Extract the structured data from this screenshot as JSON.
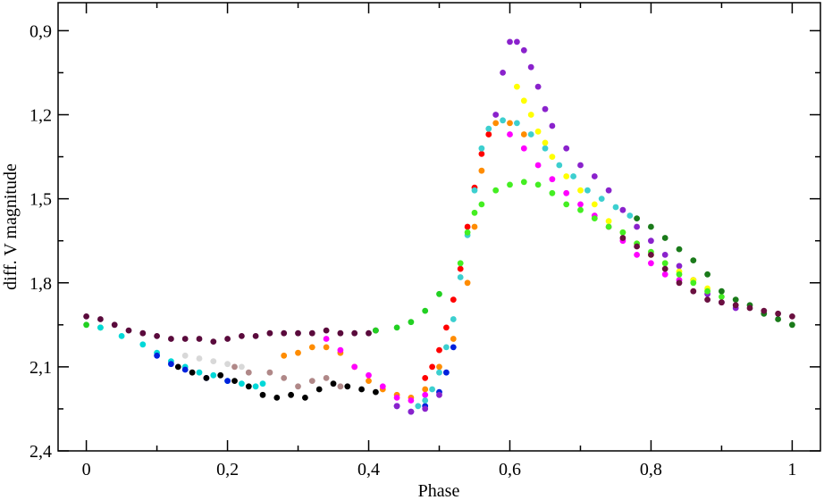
{
  "chart_data": {
    "type": "scatter",
    "xlabel": "Phase",
    "ylabel": "diff. V magnitude",
    "xlim": [
      -0.04,
      1.04
    ],
    "ylim": [
      0.8,
      2.4
    ],
    "y_inverted": true,
    "grid": false,
    "legend": "none",
    "x_ticks": [
      {
        "value": 0,
        "label": "0"
      },
      {
        "value": 0.2,
        "label": "0,2"
      },
      {
        "value": 0.4,
        "label": "0,4"
      },
      {
        "value": 0.6,
        "label": "0,6"
      },
      {
        "value": 0.8,
        "label": "0,8"
      },
      {
        "value": 1,
        "label": "1"
      }
    ],
    "y_ticks": [
      {
        "value": 0.9,
        "label": "0,9"
      },
      {
        "value": 1.2,
        "label": "1,2"
      },
      {
        "value": 1.5,
        "label": "1,5"
      },
      {
        "value": 1.8,
        "label": "1,8"
      },
      {
        "value": 2.1,
        "label": "2,1"
      },
      {
        "value": 2.4,
        "label": "2,4"
      }
    ],
    "series": [
      {
        "color": "#5a0a3c",
        "points": [
          [
            0.0,
            1.92
          ],
          [
            0.02,
            1.93
          ],
          [
            0.04,
            1.95
          ],
          [
            0.06,
            1.97
          ],
          [
            0.08,
            1.98
          ],
          [
            0.1,
            1.99
          ],
          [
            0.12,
            2.0
          ],
          [
            0.14,
            2.0
          ],
          [
            0.16,
            2.0
          ],
          [
            0.18,
            2.01
          ],
          [
            0.2,
            2.0
          ],
          [
            0.22,
            1.99
          ],
          [
            0.24,
            1.99
          ],
          [
            0.26,
            1.98
          ],
          [
            0.28,
            1.98
          ],
          [
            0.3,
            1.98
          ],
          [
            0.32,
            1.98
          ],
          [
            0.34,
            1.97
          ],
          [
            0.36,
            1.98
          ],
          [
            0.38,
            1.98
          ],
          [
            0.4,
            1.98
          ],
          [
            0.41,
            1.97
          ]
        ]
      },
      {
        "color": "#22d022",
        "points": [
          [
            0.0,
            1.95
          ],
          [
            0.02,
            1.96
          ],
          [
            0.41,
            1.97
          ],
          [
            0.44,
            1.96
          ],
          [
            0.46,
            1.94
          ],
          [
            0.48,
            1.9
          ],
          [
            0.5,
            1.84
          ]
        ]
      },
      {
        "color": "#00d8d8",
        "points": [
          [
            0.02,
            1.96
          ],
          [
            0.05,
            1.99
          ],
          [
            0.08,
            2.02
          ],
          [
            0.1,
            2.05
          ],
          [
            0.12,
            2.08
          ],
          [
            0.14,
            2.1
          ],
          [
            0.16,
            2.12
          ],
          [
            0.18,
            2.13
          ],
          [
            0.2,
            2.15
          ],
          [
            0.22,
            2.16
          ],
          [
            0.24,
            2.17
          ],
          [
            0.25,
            2.16
          ]
        ]
      },
      {
        "color": "#0022dd",
        "points": [
          [
            0.1,
            2.06
          ],
          [
            0.12,
            2.09
          ],
          [
            0.14,
            2.11
          ],
          [
            0.17,
            2.14
          ],
          [
            0.2,
            2.15
          ],
          [
            0.44,
            2.24
          ],
          [
            0.46,
            2.26
          ],
          [
            0.48,
            2.24
          ],
          [
            0.5,
            2.19
          ],
          [
            0.51,
            2.12
          ],
          [
            0.52,
            2.03
          ]
        ]
      },
      {
        "color": "#000000",
        "points": [
          [
            0.13,
            2.1
          ],
          [
            0.15,
            2.12
          ],
          [
            0.17,
            2.14
          ],
          [
            0.19,
            2.13
          ],
          [
            0.21,
            2.15
          ],
          [
            0.23,
            2.17
          ],
          [
            0.25,
            2.2
          ],
          [
            0.27,
            2.21
          ],
          [
            0.29,
            2.2
          ],
          [
            0.31,
            2.21
          ],
          [
            0.33,
            2.18
          ],
          [
            0.35,
            2.16
          ],
          [
            0.37,
            2.17
          ],
          [
            0.39,
            2.18
          ],
          [
            0.41,
            2.19
          ]
        ]
      },
      {
        "color": "#d8d8d8",
        "points": [
          [
            0.14,
            2.06
          ],
          [
            0.16,
            2.07
          ],
          [
            0.18,
            2.08
          ],
          [
            0.2,
            2.09
          ],
          [
            0.22,
            2.1
          ]
        ]
      },
      {
        "color": "#b08888",
        "points": [
          [
            0.21,
            2.1
          ],
          [
            0.23,
            2.12
          ],
          [
            0.26,
            2.12
          ],
          [
            0.28,
            2.14
          ],
          [
            0.3,
            2.17
          ],
          [
            0.32,
            2.15
          ],
          [
            0.34,
            2.14
          ],
          [
            0.36,
            2.17
          ]
        ]
      },
      {
        "color": "#ff8c00",
        "points": [
          [
            0.28,
            2.06
          ],
          [
            0.3,
            2.05
          ],
          [
            0.32,
            2.03
          ],
          [
            0.34,
            2.03
          ],
          [
            0.36,
            2.05
          ],
          [
            0.38,
            2.1
          ],
          [
            0.4,
            2.15
          ],
          [
            0.42,
            2.18
          ],
          [
            0.44,
            2.2
          ],
          [
            0.46,
            2.21
          ],
          [
            0.48,
            2.18
          ],
          [
            0.5,
            2.1
          ],
          [
            0.52,
            2.0
          ],
          [
            0.54,
            1.8
          ],
          [
            0.55,
            1.6
          ],
          [
            0.56,
            1.4
          ],
          [
            0.57,
            1.27
          ],
          [
            0.58,
            1.23
          ],
          [
            0.6,
            1.23
          ],
          [
            0.62,
            1.27
          ]
        ]
      },
      {
        "color": "#ff00ff",
        "points": [
          [
            0.34,
            2.0
          ],
          [
            0.36,
            2.04
          ],
          [
            0.38,
            2.1
          ],
          [
            0.4,
            2.13
          ],
          [
            0.42,
            2.17
          ],
          [
            0.44,
            2.21
          ],
          [
            0.46,
            2.22
          ],
          [
            0.48,
            2.2
          ],
          [
            0.6,
            1.27
          ],
          [
            0.62,
            1.32
          ],
          [
            0.64,
            1.38
          ],
          [
            0.66,
            1.43
          ],
          [
            0.68,
            1.48
          ],
          [
            0.7,
            1.52
          ],
          [
            0.72,
            1.56
          ],
          [
            0.74,
            1.6
          ],
          [
            0.76,
            1.65
          ],
          [
            0.78,
            1.7
          ],
          [
            0.8,
            1.73
          ],
          [
            0.82,
            1.77
          ],
          [
            0.84,
            1.79
          ]
        ]
      },
      {
        "color": "#ff0000",
        "points": [
          [
            0.48,
            2.14
          ],
          [
            0.49,
            2.1
          ],
          [
            0.5,
            2.04
          ],
          [
            0.51,
            1.96
          ],
          [
            0.52,
            1.86
          ],
          [
            0.53,
            1.75
          ],
          [
            0.54,
            1.6
          ],
          [
            0.55,
            1.46
          ],
          [
            0.56,
            1.34
          ],
          [
            0.57,
            1.27
          ]
        ]
      },
      {
        "color": "#3ccfcf",
        "points": [
          [
            0.47,
            2.24
          ],
          [
            0.48,
            2.22
          ],
          [
            0.49,
            2.18
          ],
          [
            0.5,
            2.12
          ],
          [
            0.51,
            2.03
          ],
          [
            0.52,
            1.93
          ],
          [
            0.53,
            1.78
          ],
          [
            0.54,
            1.63
          ],
          [
            0.55,
            1.47
          ],
          [
            0.56,
            1.32
          ],
          [
            0.57,
            1.25
          ],
          [
            0.59,
            1.22
          ],
          [
            0.61,
            1.23
          ],
          [
            0.63,
            1.27
          ],
          [
            0.65,
            1.32
          ],
          [
            0.67,
            1.38
          ],
          [
            0.69,
            1.42
          ],
          [
            0.71,
            1.47
          ],
          [
            0.73,
            1.5
          ],
          [
            0.75,
            1.53
          ],
          [
            0.77,
            1.56
          ]
        ]
      },
      {
        "color": "#8a22cc",
        "points": [
          [
            0.44,
            2.24
          ],
          [
            0.46,
            2.26
          ],
          [
            0.48,
            2.25
          ],
          [
            0.5,
            2.2
          ],
          [
            0.58,
            1.2
          ],
          [
            0.59,
            1.05
          ],
          [
            0.6,
            0.94
          ],
          [
            0.61,
            0.94
          ],
          [
            0.62,
            0.97
          ],
          [
            0.63,
            1.03
          ],
          [
            0.64,
            1.1
          ],
          [
            0.65,
            1.18
          ],
          [
            0.66,
            1.24
          ],
          [
            0.68,
            1.32
          ],
          [
            0.7,
            1.38
          ],
          [
            0.72,
            1.42
          ],
          [
            0.74,
            1.47
          ],
          [
            0.76,
            1.54
          ],
          [
            0.78,
            1.6
          ],
          [
            0.8,
            1.65
          ],
          [
            0.82,
            1.7
          ],
          [
            0.84,
            1.74
          ],
          [
            0.86,
            1.79
          ],
          [
            0.88,
            1.84
          ],
          [
            0.9,
            1.87
          ],
          [
            0.92,
            1.89
          ]
        ]
      },
      {
        "color": "#ffff00",
        "points": [
          [
            0.61,
            1.1
          ],
          [
            0.62,
            1.15
          ],
          [
            0.63,
            1.2
          ],
          [
            0.64,
            1.26
          ],
          [
            0.65,
            1.3
          ],
          [
            0.66,
            1.35
          ],
          [
            0.68,
            1.42
          ],
          [
            0.7,
            1.47
          ],
          [
            0.72,
            1.52
          ],
          [
            0.74,
            1.58
          ],
          [
            0.76,
            1.62
          ],
          [
            0.78,
            1.66
          ],
          [
            0.8,
            1.7
          ],
          [
            0.82,
            1.73
          ],
          [
            0.84,
            1.76
          ],
          [
            0.86,
            1.79
          ],
          [
            0.88,
            1.82
          ]
        ]
      },
      {
        "color": "#44ee22",
        "points": [
          [
            0.53,
            1.73
          ],
          [
            0.54,
            1.62
          ],
          [
            0.55,
            1.55
          ],
          [
            0.56,
            1.52
          ],
          [
            0.58,
            1.47
          ],
          [
            0.6,
            1.45
          ],
          [
            0.62,
            1.44
          ],
          [
            0.64,
            1.45
          ],
          [
            0.66,
            1.48
          ],
          [
            0.68,
            1.52
          ],
          [
            0.7,
            1.54
          ],
          [
            0.72,
            1.57
          ],
          [
            0.74,
            1.6
          ],
          [
            0.76,
            1.62
          ],
          [
            0.78,
            1.66
          ],
          [
            0.8,
            1.69
          ],
          [
            0.82,
            1.73
          ],
          [
            0.84,
            1.77
          ],
          [
            0.86,
            1.8
          ],
          [
            0.88,
            1.83
          ],
          [
            0.9,
            1.85
          ]
        ]
      },
      {
        "color": "#1a7a1a",
        "points": [
          [
            0.78,
            1.57
          ],
          [
            0.8,
            1.6
          ],
          [
            0.82,
            1.64
          ],
          [
            0.84,
            1.68
          ],
          [
            0.86,
            1.72
          ],
          [
            0.88,
            1.77
          ],
          [
            0.9,
            1.83
          ],
          [
            0.92,
            1.86
          ],
          [
            0.94,
            1.88
          ],
          [
            0.96,
            1.91
          ],
          [
            0.98,
            1.93
          ],
          [
            1.0,
            1.95
          ]
        ]
      },
      {
        "color": "#6a1040",
        "points": [
          [
            0.76,
            1.64
          ],
          [
            0.78,
            1.67
          ],
          [
            0.8,
            1.7
          ],
          [
            0.82,
            1.75
          ],
          [
            0.84,
            1.8
          ],
          [
            0.86,
            1.83
          ],
          [
            0.88,
            1.86
          ],
          [
            0.9,
            1.87
          ],
          [
            0.92,
            1.88
          ],
          [
            0.94,
            1.89
          ],
          [
            0.96,
            1.9
          ],
          [
            0.98,
            1.91
          ],
          [
            1.0,
            1.92
          ]
        ]
      }
    ]
  }
}
